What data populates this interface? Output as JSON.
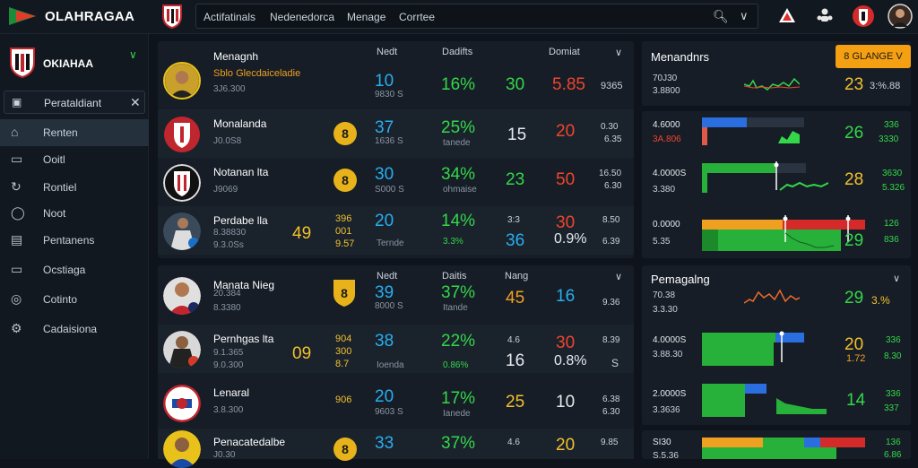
{
  "app": {
    "brand": "OLAHRAGAA"
  },
  "nav": {
    "items": [
      "Actifatinals",
      "Nedenedorca",
      "Menage",
      "Corrtee"
    ]
  },
  "sidebar": {
    "team_name": "OKIAHAA",
    "selector_label": "Perataldiant",
    "items": [
      {
        "label": "Renten",
        "icon": "home-icon",
        "active": true
      },
      {
        "label": "Ooitl",
        "icon": "inbox-icon",
        "active": false
      },
      {
        "label": "Rontiel",
        "icon": "refresh-icon",
        "active": false
      },
      {
        "label": "Noot",
        "icon": "chat-icon",
        "active": false
      },
      {
        "label": "Pentanens",
        "icon": "grid-icon",
        "active": false
      },
      {
        "label": "Ocstiaga",
        "icon": "screen-icon",
        "active": false
      },
      {
        "label": "Cotinto",
        "icon": "globe-icon",
        "active": false
      },
      {
        "label": "Cadaisiona",
        "icon": "settings-icon",
        "active": false
      }
    ]
  },
  "table1": {
    "headers": [
      "Nedt",
      "Dadifts",
      "Domiat"
    ],
    "rows": [
      {
        "name": "Menagnh",
        "sub": "Sblo Glecdaiceladie",
        "sub2": "3J6.300",
        "c1": "10",
        "c1s": "9830 S",
        "c2": "16%",
        "c3": "30",
        "c4": "5.85",
        "c5": "9365"
      },
      {
        "name": "Monalanda",
        "sub": "J0.0S8",
        "badge": "8",
        "c1": "37",
        "c1s": "1636 S",
        "c2": "25%",
        "c2s": "tanede",
        "c3": "15",
        "c4": "20",
        "c5": "0.30",
        "c5s": "6.35"
      },
      {
        "name": "Notanan lta",
        "sub": "J9069",
        "badge": "8",
        "c1": "30",
        "c1s": "S000 S",
        "c2": "34%",
        "c2s": "ohmaise",
        "c3": "23",
        "c4": "50",
        "c5": "16.50",
        "c5s": "6.30"
      },
      {
        "name": "Perdabe lla",
        "sub": "8.38830",
        "sub2": "9.3.0Ss",
        "score": "49",
        "y1": "396",
        "y2": "001",
        "y3": "9.57",
        "c1": "20",
        "c1s": "Ternde",
        "c2": "14%",
        "c2s": "3.3%",
        "c3a": "3:3",
        "c3": "36",
        "c4": "30",
        "c4s": "0.9%",
        "c5": "8.50",
        "c5s": "6.39"
      }
    ]
  },
  "table2": {
    "headers": [
      "Nedt",
      "Daitis",
      "Nang"
    ],
    "rows": [
      {
        "name": "Manata Nieg",
        "sub": "20.384",
        "sub2": "8.3380",
        "badge": "8",
        "c1": "39",
        "c1s": "8000 S",
        "c2": "37%",
        "c2s": "Itande",
        "c3": "45",
        "c4": "16",
        "c5": "9.36"
      },
      {
        "name": "Pernhgas lta",
        "sub": "9.1.365",
        "sub2": "9.0.300",
        "score": "09",
        "y1": "904",
        "y2": "300",
        "y3": "8.7",
        "c1": "38",
        "c1s": "Ioenda",
        "c2": "22%",
        "c2s": "0.86%",
        "c3a": "4.6",
        "c3": "16",
        "c4": "30",
        "c4s": "0.8%",
        "c5": "8.39",
        "c5s": "S"
      },
      {
        "name": "Lenaral",
        "sub": "3.8.300",
        "y1": "906",
        "c1": "20",
        "c1s": "9603 S",
        "c2": "17%",
        "c2s": "Ianede",
        "c3": "25",
        "c4": "10",
        "c5": "6.38",
        "c5s": "6.30"
      },
      {
        "name": "Penacatedalbe",
        "sub": "J0.30",
        "badge": "8",
        "c1": "33",
        "c2": "37%",
        "c3a": "4.6",
        "c4": "20",
        "c5": "9.85"
      }
    ]
  },
  "right1": {
    "title": "Menandnrs",
    "button": "8 GLANGE V",
    "rows": [
      {
        "l1": "70J30",
        "l2": "3.8800",
        "val": "23",
        "val2": "3:%.88"
      },
      {
        "l1": "4.6000",
        "l2": "3A.806",
        "val": "26",
        "val2": "336",
        "val3": "3330"
      },
      {
        "l1": "4.0000S",
        "l2": "3.380",
        "val": "28",
        "val2": "3630",
        "val3": "5.326"
      },
      {
        "l1": "0.0000",
        "l2": "5.35",
        "val": "29",
        "val2": "126",
        "val3": "836"
      }
    ]
  },
  "right2": {
    "title": "Pemagalng",
    "rows": [
      {
        "l1": "70.38",
        "l2": "3.3.30",
        "val": "29",
        "val2": "3.%"
      },
      {
        "l1": "4.0000S",
        "l2": "3.88.30",
        "val": "20",
        "val2": "1.72",
        "val3": "336",
        "val4": "8.30"
      },
      {
        "l1": "2.0000S",
        "l2": "3.3636",
        "val": "14",
        "val2": "336",
        "val3": "337"
      },
      {
        "l1": "SI30",
        "l2": "S.5.36",
        "val": "",
        "val2": "136",
        "val3": "6.86"
      }
    ]
  }
}
